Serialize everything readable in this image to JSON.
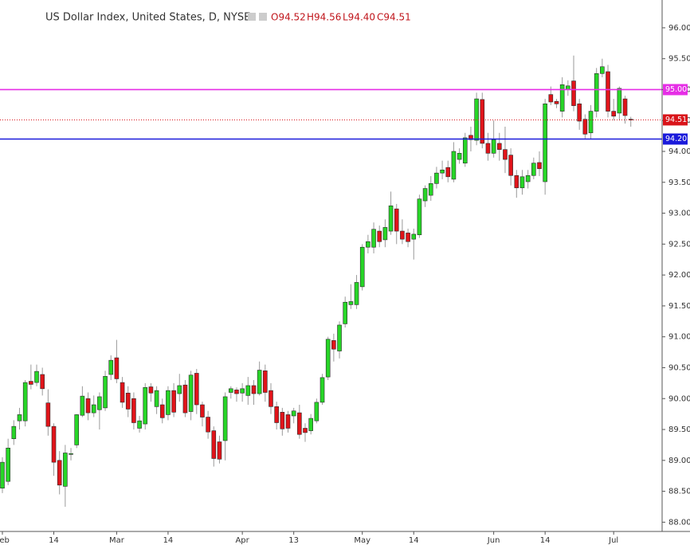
{
  "chart_data": {
    "type": "candlestick",
    "title": "US Dollar Index, United States, D, NYSE",
    "header": {
      "open": "O94.52",
      "high": "H94.56",
      "low": "L94.40",
      "close": "C94.51"
    },
    "categories": [
      "Feb",
      null,
      null,
      null,
      null,
      null,
      null,
      null,
      null,
      "14",
      null,
      null,
      null,
      null,
      null,
      null,
      null,
      null,
      null,
      null,
      "Mar",
      null,
      null,
      null,
      null,
      null,
      null,
      null,
      null,
      "14",
      null,
      null,
      null,
      null,
      null,
      null,
      null,
      null,
      null,
      null,
      null,
      null,
      "Apr",
      null,
      null,
      null,
      null,
      null,
      null,
      null,
      null,
      "13",
      null,
      null,
      null,
      null,
      null,
      null,
      null,
      null,
      null,
      null,
      null,
      "May",
      null,
      null,
      null,
      null,
      null,
      null,
      null,
      null,
      "14",
      null,
      null,
      null,
      null,
      null,
      null,
      null,
      null,
      null,
      null,
      null,
      null,
      null,
      "Jun",
      null,
      null,
      null,
      null,
      null,
      null,
      null,
      null,
      "14",
      null,
      null,
      null,
      null,
      null,
      null,
      null,
      null,
      null,
      null,
      null,
      "Jul",
      null,
      null,
      null
    ],
    "open": [
      88.55,
      88.66,
      89.35,
      89.64,
      89.64,
      90.28,
      90.26,
      90.39,
      89.93,
      89.55,
      89.0,
      88.58,
      89.1,
      89.25,
      89.73,
      90.0,
      89.77,
      89.82,
      89.85,
      90.39,
      90.66,
      90.26,
      90.09,
      90.0,
      89.52,
      89.59,
      90.19,
      89.87,
      89.9,
      89.74,
      90.13,
      90.08,
      90.22,
      89.79,
      90.41,
      89.9,
      89.7,
      89.48,
      89.3,
      89.32,
      90.1,
      90.14,
      90.09,
      90.05,
      90.21,
      90.08,
      90.45,
      90.13,
      89.87,
      89.78,
      89.74,
      89.72,
      89.77,
      89.52,
      89.48,
      89.64,
      89.94,
      90.35,
      90.94,
      90.77,
      91.21,
      91.52,
      91.52,
      91.81,
      92.45,
      92.45,
      92.71,
      92.57,
      92.71,
      93.07,
      92.71,
      92.68,
      92.58,
      92.65,
      93.2,
      93.29,
      93.48,
      93.65,
      93.74,
      93.55,
      93.87,
      93.81,
      94.26,
      94.18,
      94.84,
      94.13,
      93.97,
      94.13,
      94.03,
      93.94,
      93.61,
      93.41,
      93.51,
      93.61,
      93.82,
      93.51,
      94.92,
      94.81,
      94.65,
      95.0,
      95.14,
      94.77,
      94.52,
      94.3,
      94.65,
      95.26,
      95.29,
      94.65,
      94.62,
      94.85,
      94.52
    ],
    "high": [
      89.05,
      89.35,
      89.65,
      89.85,
      90.3,
      90.55,
      90.55,
      90.5,
      90.15,
      89.6,
      89.15,
      89.25,
      89.2,
      89.75,
      90.2,
      90.1,
      90.05,
      90.1,
      90.45,
      90.7,
      90.95,
      90.35,
      90.2,
      90.1,
      89.72,
      90.25,
      90.25,
      90.2,
      90.0,
      90.2,
      90.25,
      90.4,
      90.3,
      90.45,
      90.48,
      89.95,
      89.8,
      89.55,
      89.4,
      90.1,
      90.2,
      90.18,
      90.25,
      90.35,
      90.3,
      90.6,
      90.55,
      90.25,
      89.95,
      89.85,
      89.8,
      89.85,
      89.9,
      89.6,
      89.75,
      90.0,
      90.4,
      91.0,
      91.05,
      91.25,
      91.65,
      91.85,
      92.0,
      92.5,
      92.65,
      92.85,
      92.8,
      92.9,
      93.35,
      93.15,
      92.9,
      92.75,
      92.75,
      93.3,
      93.45,
      93.6,
      93.75,
      93.85,
      93.85,
      94.15,
      94.05,
      94.3,
      94.4,
      94.95,
      94.95,
      94.3,
      94.5,
      94.3,
      94.4,
      94.05,
      93.7,
      93.7,
      93.7,
      93.9,
      94.0,
      94.85,
      95.05,
      94.85,
      95.2,
      95.15,
      95.55,
      94.85,
      94.6,
      94.75,
      95.35,
      95.5,
      95.4,
      94.85,
      95.05,
      94.9,
      94.56
    ],
    "low": [
      88.47,
      88.6,
      89.25,
      89.5,
      89.55,
      90.15,
      90.2,
      90.05,
      89.4,
      88.75,
      88.45,
      88.25,
      89.0,
      89.2,
      89.7,
      89.65,
      89.7,
      89.5,
      89.8,
      90.3,
      90.25,
      89.85,
      89.7,
      89.5,
      89.45,
      89.5,
      89.95,
      89.75,
      89.6,
      89.65,
      89.7,
      89.95,
      89.7,
      89.65,
      89.75,
      89.55,
      89.35,
      88.9,
      88.95,
      89.0,
      90.0,
      89.95,
      89.95,
      89.9,
      89.9,
      90.05,
      89.95,
      89.75,
      89.5,
      89.4,
      89.45,
      89.6,
      89.35,
      89.3,
      89.42,
      89.6,
      89.9,
      90.3,
      90.6,
      90.65,
      91.15,
      91.45,
      91.45,
      91.75,
      92.35,
      92.35,
      92.45,
      92.45,
      92.65,
      92.5,
      92.5,
      92.45,
      92.25,
      92.6,
      93.1,
      93.2,
      93.4,
      93.55,
      93.5,
      93.5,
      93.8,
      93.75,
      94.0,
      94.1,
      94.05,
      93.85,
      93.9,
      93.85,
      93.65,
      93.45,
      93.25,
      93.3,
      93.4,
      93.55,
      93.6,
      93.3,
      94.75,
      94.7,
      94.55,
      94.9,
      94.65,
      94.35,
      94.2,
      94.2,
      94.55,
      95.2,
      94.55,
      94.5,
      94.5,
      94.45,
      94.4
    ],
    "close": [
      88.97,
      89.2,
      89.55,
      89.74,
      90.26,
      90.23,
      90.44,
      90.16,
      89.55,
      88.97,
      88.6,
      89.12,
      89.11,
      89.74,
      90.04,
      89.77,
      89.9,
      90.03,
      90.36,
      90.62,
      90.32,
      89.94,
      89.83,
      89.61,
      89.64,
      90.18,
      90.09,
      90.13,
      89.69,
      90.13,
      89.78,
      90.21,
      89.77,
      90.38,
      89.9,
      89.7,
      89.46,
      89.03,
      89.02,
      90.03,
      90.16,
      90.08,
      90.16,
      90.21,
      90.08,
      90.46,
      90.1,
      89.87,
      89.61,
      89.51,
      89.52,
      89.8,
      89.42,
      89.45,
      89.68,
      89.94,
      90.34,
      90.96,
      90.8,
      91.19,
      91.56,
      91.57,
      91.88,
      92.45,
      92.54,
      92.74,
      92.54,
      92.77,
      93.12,
      92.71,
      92.58,
      92.54,
      92.66,
      93.23,
      93.4,
      93.48,
      93.65,
      93.7,
      93.59,
      94.0,
      93.97,
      94.22,
      94.19,
      94.85,
      94.13,
      93.97,
      94.19,
      94.03,
      93.87,
      93.61,
      93.41,
      93.59,
      93.61,
      93.81,
      93.72,
      94.77,
      94.8,
      94.77,
      95.08,
      95.06,
      94.74,
      94.49,
      94.28,
      94.65,
      95.26,
      95.37,
      94.65,
      94.57,
      95.02,
      94.58,
      94.51
    ],
    "up_color": "#27d627",
    "down_color": "#e0141a",
    "ylim": [
      87.85,
      96.45
    ],
    "yticks": [
      {
        "value": 88,
        "label": "88.00"
      },
      {
        "value": 88.5,
        "label": "88.50"
      },
      {
        "value": 89,
        "label": "89.00"
      },
      {
        "value": 89.5,
        "label": "89.50"
      },
      {
        "value": 90,
        "label": "90.00"
      },
      {
        "value": 90.5,
        "label": "90.50"
      },
      {
        "value": 91,
        "label": "91.00"
      },
      {
        "value": 91.5,
        "label": "91.50"
      },
      {
        "value": 92,
        "label": "92.00"
      },
      {
        "value": 92.5,
        "label": "92.50"
      },
      {
        "value": 93,
        "label": "93.00"
      },
      {
        "value": 93.5,
        "label": "93.50"
      },
      {
        "value": 94,
        "label": "94.00"
      },
      {
        "value": 94.5,
        "label": "94.50"
      },
      {
        "value": 95,
        "label": "95.00"
      },
      {
        "value": 95.5,
        "label": "95.50"
      },
      {
        "value": 96,
        "label": "96.00"
      }
    ],
    "hlines": [
      {
        "value": 95,
        "label": "95.00",
        "color": "#e62ee6",
        "style": "solid"
      },
      {
        "value": 94.2,
        "label": "94.20",
        "color": "#1a1adb",
        "style": "solid"
      },
      {
        "value": 94.51,
        "label": "94.51",
        "color": "#d9141a",
        "style": "dotted"
      }
    ],
    "grid": false
  }
}
